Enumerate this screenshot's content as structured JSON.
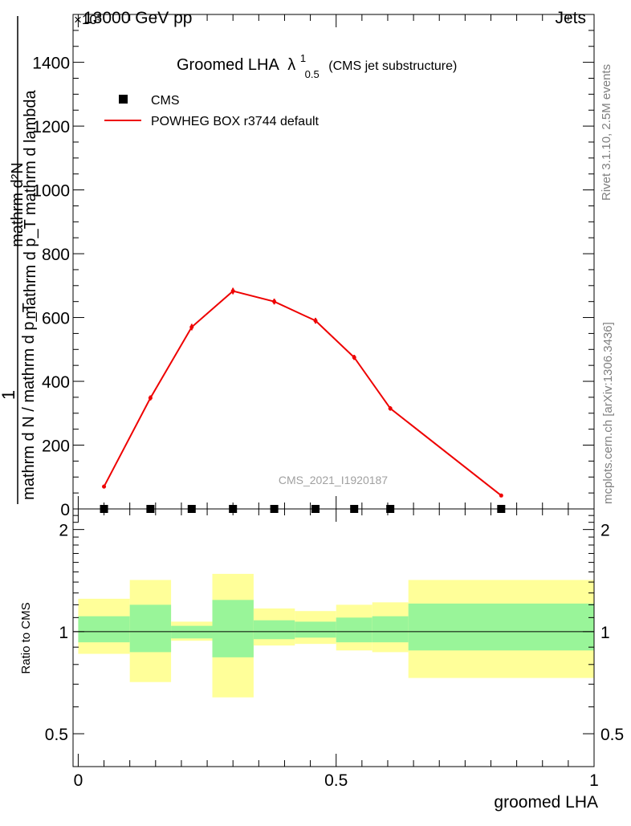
{
  "header": {
    "energy_label": "13000 GeV pp",
    "category_label": "Jets",
    "scale_exponent_label": "×10³"
  },
  "side_labels": {
    "rivet": "Rivet 3.1.10,  2.5M events",
    "source": "mcplots.cern.ch [arXiv:1306.3436]"
  },
  "watermark": "CMS_2021_I1920187",
  "chart_data": [
    {
      "type": "line",
      "title": "Groomed LHA",
      "title_symbol": "λ",
      "title_sup": "1",
      "title_sub": "0.5",
      "title_suffix": "(CMS jet substructure)",
      "ylabel_numerator": "mathrm d²N",
      "ylabel_numerator_2": "mathrm d p_T mathrm d lambda",
      "ylabel_one": "1",
      "ylabel_denominator": "mathrm d N / mathrm d p_T",
      "ylim": [
        0,
        1550
      ],
      "yticks": [
        0,
        200,
        400,
        600,
        800,
        1000,
        1200,
        1400
      ],
      "ytick_labels": [
        "0",
        "200",
        "400",
        "600",
        "800",
        "1000",
        "1200",
        "1400"
      ],
      "xlim": [
        -0.01,
        1.0
      ],
      "legend": [
        {
          "name": "CMS",
          "marker": "square",
          "color": "#000000"
        },
        {
          "name": "POWHEG BOX r3744 default",
          "marker": "line",
          "color": "#ee0000"
        }
      ],
      "series": [
        {
          "name": "CMS",
          "x": [
            0.05,
            0.14,
            0.22,
            0.3,
            0.38,
            0.46,
            0.535,
            0.605,
            0.82
          ],
          "y": [
            0,
            0,
            0,
            0,
            0,
            0,
            0,
            0,
            0
          ]
        },
        {
          "name": "POWHEG BOX r3744 default",
          "x": [
            0.05,
            0.14,
            0.22,
            0.3,
            0.38,
            0.46,
            0.535,
            0.605,
            0.82
          ],
          "y": [
            70,
            348,
            570,
            683,
            650,
            590,
            475,
            315,
            42
          ],
          "yerr": [
            6,
            8,
            10,
            10,
            9,
            9,
            8,
            7,
            4
          ]
        }
      ]
    },
    {
      "type": "area",
      "ylabel": "Ratio to CMS",
      "xlabel": "groomed LHA",
      "ylim": [
        0.4,
        2.3
      ],
      "scale": "log",
      "yticks": [
        0.5,
        1,
        2
      ],
      "ytick_labels": [
        "0.5",
        "1",
        "2"
      ],
      "xticks": [
        0,
        0.5,
        1
      ],
      "xtick_labels": [
        "0",
        "0.5",
        "1"
      ],
      "xlim": [
        -0.01,
        1.0
      ],
      "bands": [
        {
          "x0": 0.0,
          "x1": 0.1,
          "inner": [
            0.93,
            1.11
          ],
          "outer": [
            0.86,
            1.25
          ]
        },
        {
          "x0": 0.1,
          "x1": 0.18,
          "inner": [
            0.87,
            1.2
          ],
          "outer": [
            0.71,
            1.42
          ]
        },
        {
          "x0": 0.18,
          "x1": 0.26,
          "inner": [
            0.955,
            1.04
          ],
          "outer": [
            0.94,
            1.07
          ]
        },
        {
          "x0": 0.26,
          "x1": 0.34,
          "inner": [
            0.84,
            1.24
          ],
          "outer": [
            0.64,
            1.48
          ]
        },
        {
          "x0": 0.34,
          "x1": 0.42,
          "inner": [
            0.95,
            1.08
          ],
          "outer": [
            0.91,
            1.17
          ]
        },
        {
          "x0": 0.42,
          "x1": 0.5,
          "inner": [
            0.96,
            1.07
          ],
          "outer": [
            0.92,
            1.15
          ]
        },
        {
          "x0": 0.5,
          "x1": 0.57,
          "inner": [
            0.93,
            1.1
          ],
          "outer": [
            0.88,
            1.2
          ]
        },
        {
          "x0": 0.57,
          "x1": 0.64,
          "inner": [
            0.93,
            1.11
          ],
          "outer": [
            0.87,
            1.22
          ]
        },
        {
          "x0": 0.64,
          "x1": 1.0,
          "inner": [
            0.88,
            1.21
          ],
          "outer": [
            0.73,
            1.42
          ]
        }
      ],
      "colors": {
        "inner": "#99f599",
        "outer": "#ffff99"
      }
    }
  ],
  "colors": {
    "mc_line": "#ee0000",
    "data": "#000000",
    "side_text": "#808080"
  }
}
